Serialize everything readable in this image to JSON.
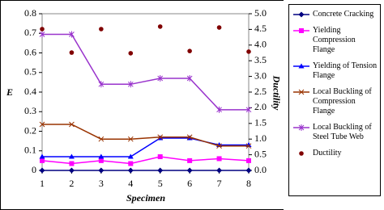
{
  "chart_data": {
    "type": "line",
    "xlabel": "Specimen",
    "ylabel": "E",
    "y2label": "Ductility",
    "x": [
      1,
      2,
      3,
      4,
      5,
      6,
      7,
      8
    ],
    "xlim": [
      1,
      8
    ],
    "xticks": [
      1,
      2,
      3,
      4,
      5,
      6,
      7,
      8
    ],
    "ylim": [
      0,
      0.8
    ],
    "yticks": [
      0,
      0.1,
      0.2,
      0.3,
      0.4,
      0.5,
      0.6,
      0.7,
      0.8
    ],
    "y2lim": [
      0,
      5
    ],
    "y2ticks": [
      {
        "value": 0,
        "label": "0.0"
      },
      0.5,
      {
        "value": 1,
        "label": "1.0"
      },
      1.5,
      {
        "value": 2,
        "label": "2.0"
      },
      2.5,
      {
        "value": 3,
        "label": "3.0"
      },
      3.5,
      {
        "value": 4,
        "label": "4.0"
      },
      4.5,
      {
        "value": 5,
        "label": "5.0"
      }
    ],
    "legend": "right",
    "series": [
      {
        "name": "Concrete Cracking",
        "color": "#000080",
        "marker": "diamond",
        "values": [
          0,
          0,
          0,
          0,
          0,
          0,
          0,
          0
        ]
      },
      {
        "name": "Yielding Compression Flange",
        "color": "#ff00ff",
        "marker": "square",
        "values": [
          0.05,
          0.035,
          0.05,
          0.035,
          0.07,
          0.05,
          0.06,
          0.05
        ]
      },
      {
        "name": "Yielding of Tension Flange",
        "color": "#0000ff",
        "marker": "triangle",
        "values": [
          0.07,
          0.07,
          0.07,
          0.07,
          0.165,
          0.165,
          0.13,
          0.13
        ]
      },
      {
        "name": "Local Buckling of Compression Flange",
        "color": "#993300",
        "marker": "x",
        "values": [
          0.235,
          0.235,
          0.16,
          0.16,
          0.17,
          0.17,
          0.125,
          0.125
        ]
      },
      {
        "name": "Local Buckling of Steel Tube Web",
        "color": "#9933cc",
        "marker": "asterisk",
        "values": [
          0.695,
          0.695,
          0.44,
          0.44,
          0.47,
          0.47,
          0.31,
          0.31
        ]
      },
      {
        "name": "Ductility",
        "color": "#800000",
        "marker": "circle",
        "line": false,
        "axis": "y2",
        "values": [
          4.51,
          3.76,
          4.51,
          3.74,
          4.59,
          3.81,
          4.56,
          3.79
        ]
      }
    ]
  }
}
